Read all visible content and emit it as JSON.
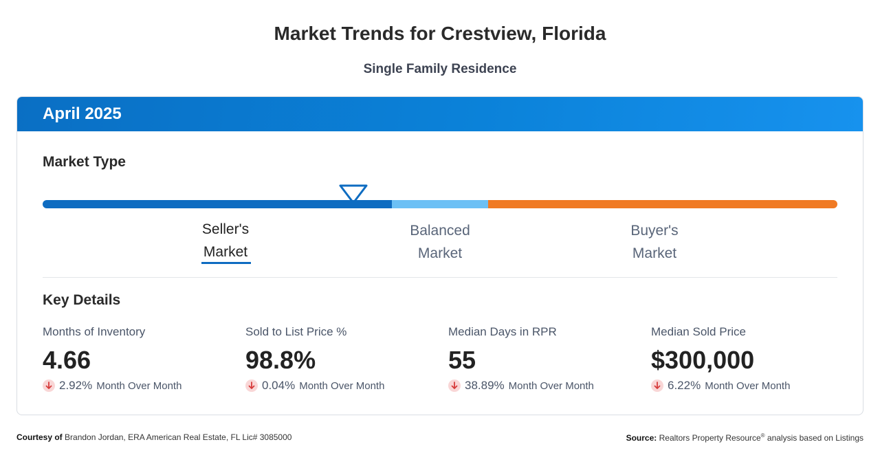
{
  "page": {
    "title": "Market Trends for Crestview, Florida",
    "subtitle": "Single Family Residence"
  },
  "card": {
    "period": "April 2025",
    "market_type_title": "Market Type",
    "market_labels": {
      "seller_line1": "Seller's",
      "seller_line2": "Market",
      "balanced_line1": "Balanced",
      "balanced_line2": "Market",
      "buyer_line1": "Buyer's",
      "buyer_line2": "Market"
    },
    "selected_market": "Seller's Market",
    "key_details_title": "Key Details",
    "stats": [
      {
        "label": "Months of Inventory",
        "value": "4.66",
        "change": "2.92%",
        "direction": "down",
        "period": "Month Over Month"
      },
      {
        "label": "Sold to List Price %",
        "value": "98.8%",
        "change": "0.04%",
        "direction": "down",
        "period": "Month Over Month"
      },
      {
        "label": "Median Days in RPR",
        "value": "55",
        "change": "38.89%",
        "direction": "down",
        "period": "Month Over Month"
      },
      {
        "label": "Median Sold Price",
        "value": "$300,000",
        "change": "6.22%",
        "direction": "down",
        "period": "Month Over Month"
      }
    ]
  },
  "footer": {
    "courtesy_label": "Courtesy of",
    "courtesy_text": "Brandon Jordan, ERA American Real Estate, FL Lic# 3085000",
    "source_label": "Source:",
    "source_text_1": "Realtors Property Resource",
    "source_reg": "®",
    "source_text_2": " analysis based on Listings"
  },
  "colors": {
    "header_blue": "#0b7fd6",
    "seller_blue": "#0e6cc1",
    "balanced_light_blue": "#6cc0f5",
    "buyer_orange": "#f07a23",
    "down_arrow_red": "#d63b3b"
  },
  "icons": {
    "marker": "triangle-down-icon",
    "change": "arrow-down-icon"
  }
}
